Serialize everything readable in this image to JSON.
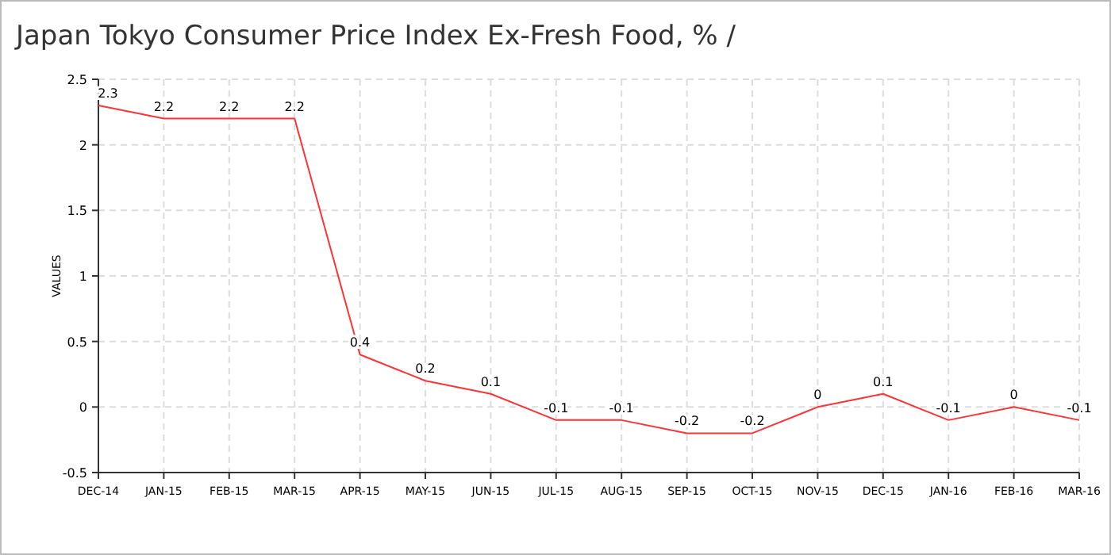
{
  "chart_data": {
    "type": "line",
    "title": "Japan Tokyo Consumer Price Index Ex-Fresh Food, %  /",
    "ylabel": "VALUES",
    "categories": [
      "DEC-14",
      "JAN-15",
      "FEB-15",
      "MAR-15",
      "APR-15",
      "MAY-15",
      "JUN-15",
      "JUL-15",
      "AUG-15",
      "SEP-15",
      "OCT-15",
      "NOV-15",
      "DEC-15",
      "JAN-16",
      "FEB-16",
      "MAR-16"
    ],
    "series": [
      {
        "color": "#ff3333",
        "values": [
          2.3,
          2.2,
          2.2,
          2.2,
          0.4,
          0.2,
          0.1,
          -0.1,
          -0.1,
          -0.2,
          -0.2,
          0,
          0.1,
          -0.1,
          0,
          -0.1
        ]
      }
    ],
    "ylim": [
      -0.5,
      2.5
    ],
    "yticks": [
      -0.5,
      0,
      0.5,
      1,
      1.5,
      2,
      2.5
    ],
    "grid": true,
    "data_labels": true,
    "marker": "none",
    "line_style": "solid"
  }
}
